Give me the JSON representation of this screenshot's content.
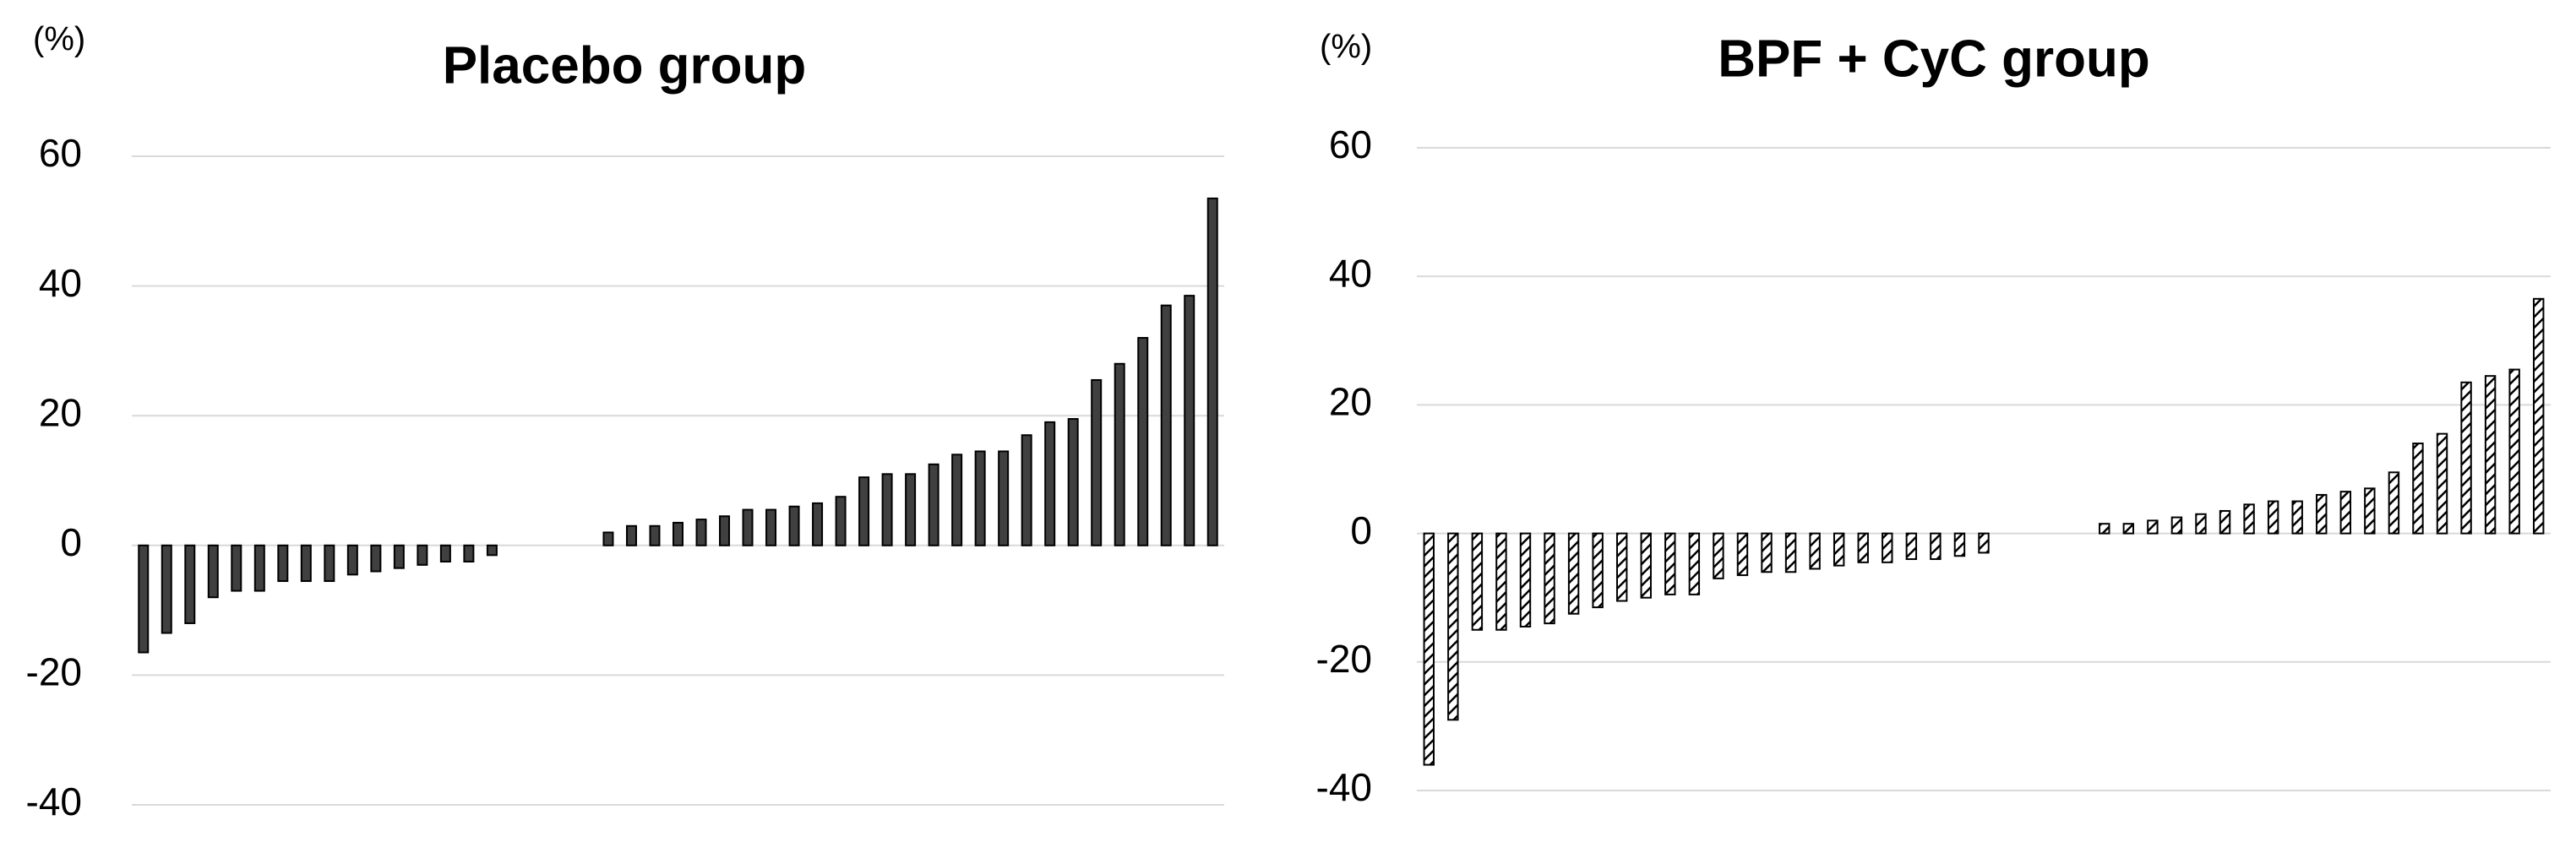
{
  "chart_data": [
    {
      "type": "bar",
      "title": "Placebo group",
      "ylabel": "(%)",
      "values": [
        -16.5,
        -13.5,
        -12,
        -8,
        -7,
        -7,
        -5.5,
        -5.5,
        -5.5,
        -4.5,
        -4,
        -3.5,
        -3,
        -2.5,
        -2.5,
        -1.5,
        null,
        null,
        null,
        null,
        2,
        3,
        3,
        3.5,
        4,
        4.5,
        5.5,
        5.5,
        6,
        6.5,
        7.5,
        10.5,
        11,
        11,
        12.5,
        14,
        14.5,
        14.5,
        17,
        19,
        19.5,
        25.5,
        28,
        32,
        37,
        38.5,
        53.5
      ],
      "color": "#404040",
      "fill_style": "solid",
      "ylim": [
        -40,
        60
      ],
      "yticks": [
        -40,
        -20,
        0,
        20,
        40,
        60
      ],
      "grid": true
    },
    {
      "type": "bar",
      "title": "BPF + CyC group",
      "ylabel": "(%)",
      "values": [
        -36,
        -29,
        -15,
        -15,
        -14.5,
        -14,
        -12.5,
        -11.5,
        -10.5,
        -10,
        -9.5,
        -9.5,
        -7,
        -6.5,
        -6,
        -6,
        -5.5,
        -5,
        -4.5,
        -4.5,
        -4,
        -4,
        -3.5,
        -3,
        null,
        null,
        null,
        null,
        1.5,
        1.5,
        2,
        2.5,
        3,
        3.5,
        4.5,
        5,
        5,
        6,
        6.5,
        7,
        9.5,
        14,
        15.5,
        23.5,
        24.5,
        25.5,
        36.5
      ],
      "color": "#000000",
      "fill_style": "hatched",
      "ylim": [
        -40,
        60
      ],
      "yticks": [
        -40,
        -20,
        0,
        20,
        40,
        60
      ],
      "grid": true
    }
  ]
}
